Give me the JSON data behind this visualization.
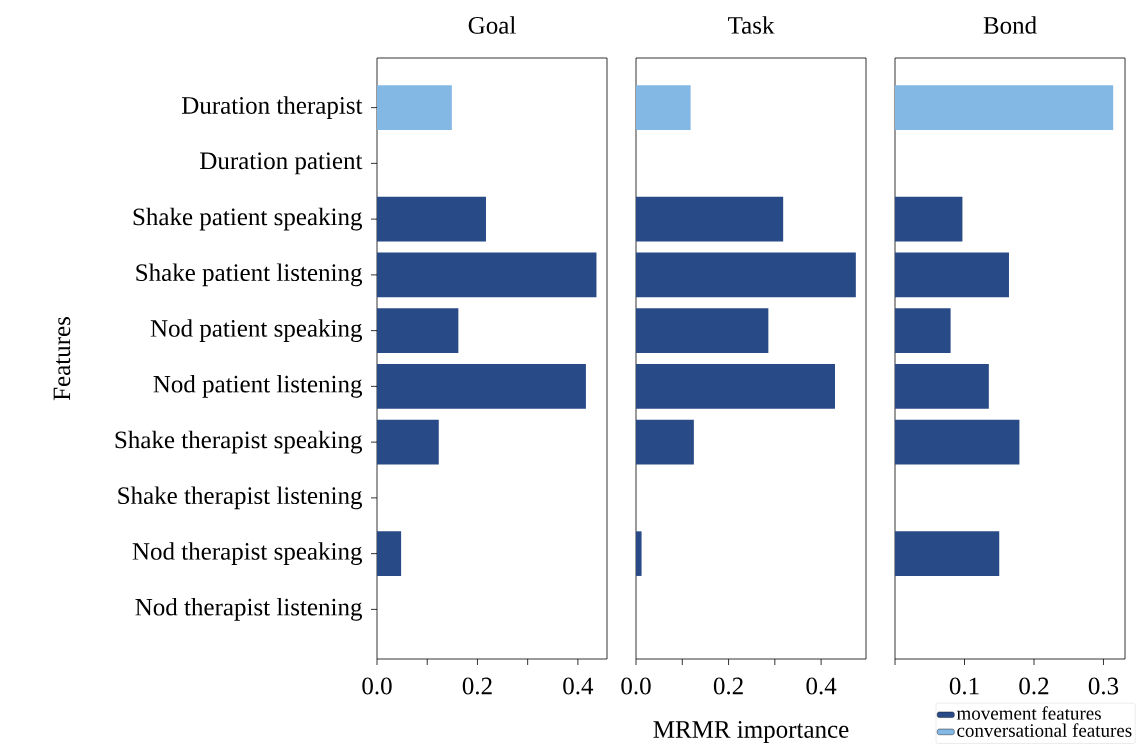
{
  "chart_data": [
    {
      "type": "bar",
      "orientation": "horizontal",
      "title": "Goal",
      "ylabel": "Features",
      "categories": [
        "Duration therapist",
        "Duration patient",
        "Shake patient speaking",
        "Shake patient listening",
        "Nod patient speaking",
        "Nod patient listening",
        "Shake therapist speaking",
        "Shake therapist listening",
        "Nod therapist speaking",
        "Nod therapist listening"
      ],
      "series": [
        {
          "color": "#284a87",
          "values": [
            null,
            null,
            0.217,
            0.437,
            0.162,
            0.416,
            0.123,
            null,
            0.048,
            null
          ]
        },
        {
          "color": "#83b8e5",
          "values": [
            0.149,
            null,
            null,
            null,
            null,
            null,
            null,
            null,
            null,
            null
          ]
        }
      ],
      "xlim": [
        0,
        0.458
      ],
      "xticks": [
        {
          "value": 0,
          "label": "0.0"
        },
        {
          "value": 0.1,
          "label": null
        },
        0.2,
        {
          "value": 0.3,
          "label": null
        },
        0.4
      ]
    },
    {
      "type": "bar",
      "orientation": "horizontal",
      "title": "Task",
      "xlabel": "MRMR importance",
      "tick_labels": "x",
      "categories": [
        null,
        null,
        null,
        null,
        null,
        null,
        null,
        null,
        null,
        null
      ],
      "series": [
        {
          "color": "#284a87",
          "values": [
            null,
            null,
            0.318,
            0.475,
            0.286,
            0.43,
            0.125,
            null,
            0.012,
            null
          ]
        },
        {
          "color": "#83b8e5",
          "values": [
            0.118,
            null,
            null,
            null,
            null,
            null,
            null,
            null,
            null,
            null
          ]
        }
      ],
      "xlim": [
        0,
        0.497
      ],
      "xticks": [
        {
          "value": 0,
          "label": "0.0"
        },
        {
          "value": 0.1,
          "label": null
        },
        0.2,
        {
          "value": 0.3,
          "label": null
        },
        0.4
      ]
    },
    {
      "type": "bar",
      "orientation": "horizontal",
      "title": "Bond",
      "tick_labels": "x",
      "legend": "bottom right",
      "categories": [
        null,
        null,
        null,
        null,
        null,
        null,
        null,
        null,
        null,
        null
      ],
      "series": [
        {
          "name": "movement features",
          "color": "#284a87",
          "values": [
            null,
            null,
            0.097,
            0.164,
            0.08,
            0.135,
            0.179,
            null,
            0.15,
            null
          ]
        },
        {
          "name": "conversational features",
          "color": "#83b8e5",
          "values": [
            0.314,
            null,
            null,
            null,
            null,
            null,
            null,
            null,
            null,
            null
          ]
        }
      ],
      "xlim": [
        0,
        0.331
      ],
      "xticks": [
        {
          "value": 0,
          "label": null
        },
        0.1,
        0.2,
        0.3
      ]
    }
  ]
}
